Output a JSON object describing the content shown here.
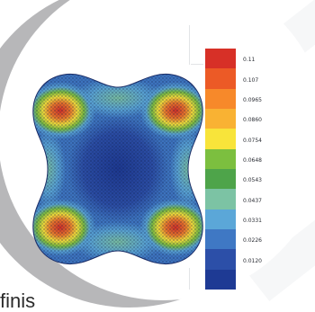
{
  "colors": {
    "arc": "#b7b7b9",
    "legend": [
      "#d73027",
      "#ec5a26",
      "#f7892a",
      "#f9b233",
      "#f8e43a",
      "#7cbf3f",
      "#4ea44a",
      "#7cc3a4",
      "#5ba7d8",
      "#3f78c4",
      "#2c4fa8",
      "#1e3a94"
    ]
  },
  "legend": {
    "labels": [
      "0.11",
      "0.107",
      "0.0965",
      "0.0860",
      "0.0754",
      "0.0648",
      "0.0543",
      "0.0437",
      "0.0331",
      "0.0226",
      "0.0120"
    ]
  },
  "caption": {
    "text": "finis"
  }
}
